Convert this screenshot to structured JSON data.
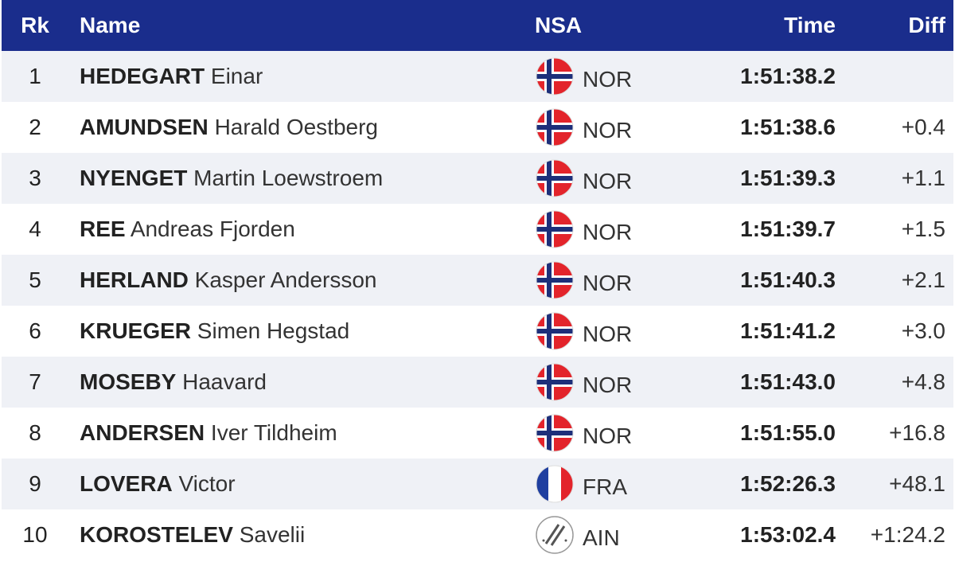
{
  "table": {
    "headers": [
      "Rk",
      "Name",
      "NSA",
      "Time",
      "Diff"
    ],
    "rows": [
      {
        "rank": 1,
        "last": "HEDEGART",
        "first": "Einar",
        "nsa": "NOR",
        "time": "1:51:38.2",
        "diff": null
      },
      {
        "rank": 2,
        "last": "AMUNDSEN",
        "first": "Harald Oestberg",
        "nsa": "NOR",
        "time": "1:51:38.6",
        "diff": "+0.4"
      },
      {
        "rank": 3,
        "last": "NYENGET",
        "first": "Martin Loewstroem",
        "nsa": "NOR",
        "time": "1:51:39.3",
        "diff": "+1.1"
      },
      {
        "rank": 4,
        "last": "REE",
        "first": "Andreas Fjorden",
        "nsa": "NOR",
        "time": "1:51:39.7",
        "diff": "+1.5"
      },
      {
        "rank": 5,
        "last": "HERLAND",
        "first": "Kasper Andersson",
        "nsa": "NOR",
        "time": "1:51:40.3",
        "diff": "+2.1"
      },
      {
        "rank": 6,
        "last": "KRUEGER",
        "first": "Simen Hegstad",
        "nsa": "NOR",
        "time": "1:51:41.2",
        "diff": "+3.0"
      },
      {
        "rank": 7,
        "last": "MOSEBY",
        "first": "Haavard",
        "nsa": "NOR",
        "time": "1:51:43.0",
        "diff": "+4.8"
      },
      {
        "rank": 8,
        "last": "ANDERSEN",
        "first": "Iver Tildheim",
        "nsa": "NOR",
        "time": "1:51:55.0",
        "diff": "+16.8"
      },
      {
        "rank": 9,
        "last": "LOVERA",
        "first": "Victor",
        "nsa": "FRA",
        "time": "1:52:26.3",
        "diff": "+48.1"
      },
      {
        "rank": 10,
        "last": "KOROSTELEV",
        "first": "Savelii",
        "nsa": "AIN",
        "time": "1:53:02.4",
        "diff": "+1:24.2"
      }
    ]
  }
}
